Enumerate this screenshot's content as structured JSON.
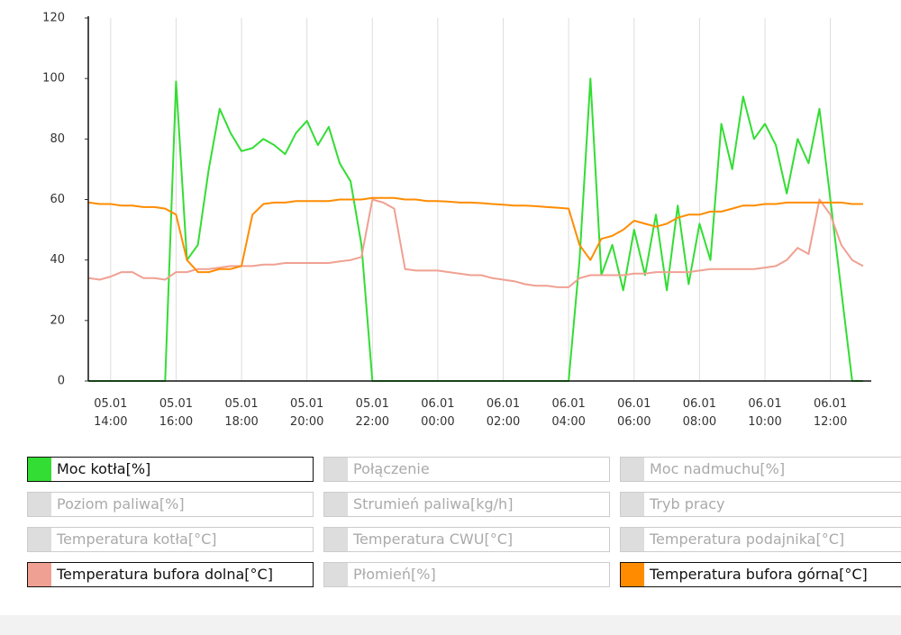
{
  "chart_data": {
    "type": "line",
    "x": [
      "05.01 13:20",
      "05.01 13:40",
      "05.01 14:00",
      "05.01 14:20",
      "05.01 14:40",
      "05.01 15:00",
      "05.01 15:20",
      "05.01 15:40",
      "05.01 16:00",
      "05.01 16:20",
      "05.01 16:40",
      "05.01 17:00",
      "05.01 17:20",
      "05.01 17:40",
      "05.01 18:00",
      "05.01 18:20",
      "05.01 18:40",
      "05.01 19:00",
      "05.01 19:20",
      "05.01 19:40",
      "05.01 20:00",
      "05.01 20:20",
      "05.01 20:40",
      "05.01 21:00",
      "05.01 21:20",
      "05.01 21:40",
      "05.01 22:00",
      "05.01 22:20",
      "05.01 22:40",
      "05.01 23:00",
      "05.01 23:20",
      "05.01 23:40",
      "06.01 00:00",
      "06.01 00:20",
      "06.01 00:40",
      "06.01 01:00",
      "06.01 01:20",
      "06.01 01:40",
      "06.01 02:00",
      "06.01 02:20",
      "06.01 02:40",
      "06.01 03:00",
      "06.01 03:20",
      "06.01 03:40",
      "06.01 04:00",
      "06.01 04:20",
      "06.01 04:40",
      "06.01 05:00",
      "06.01 05:20",
      "06.01 05:40",
      "06.01 06:00",
      "06.01 06:20",
      "06.01 06:40",
      "06.01 07:00",
      "06.01 07:20",
      "06.01 07:40",
      "06.01 08:00",
      "06.01 08:20",
      "06.01 08:40",
      "06.01 09:00",
      "06.01 09:20",
      "06.01 09:40",
      "06.01 10:00",
      "06.01 10:20",
      "06.01 10:40",
      "06.01 11:00",
      "06.01 11:20",
      "06.01 11:40",
      "06.01 12:00",
      "06.01 12:20",
      "06.01 12:40",
      "06.01 13:00"
    ],
    "xlim": [
      "05.01 13:19",
      "06.01 13:15"
    ],
    "xticks": [
      "05.01 14:00",
      "05.01 16:00",
      "05.01 18:00",
      "05.01 20:00",
      "05.01 22:00",
      "06.01 00:00",
      "06.01 02:00",
      "06.01 04:00",
      "06.01 06:00",
      "06.01 08:00",
      "06.01 10:00",
      "06.01 12:00"
    ],
    "ylim": [
      0,
      120
    ],
    "yticks": [
      0,
      20,
      40,
      60,
      80,
      100,
      120
    ],
    "grid": "x",
    "series": [
      {
        "name": "Moc kotła[%]",
        "visible": true,
        "color": "#33dd33",
        "values": [
          0,
          0,
          0,
          0,
          0,
          0,
          0,
          0,
          99,
          40,
          45,
          70,
          90,
          82,
          76,
          77,
          80,
          78,
          75,
          82,
          86,
          78,
          84,
          72,
          66,
          45,
          0,
          0,
          0,
          0,
          0,
          0,
          0,
          0,
          0,
          0,
          0,
          0,
          0,
          0,
          0,
          0,
          0,
          0,
          0,
          40,
          100,
          35,
          45,
          30,
          50,
          35,
          55,
          30,
          58,
          32,
          52,
          40,
          85,
          70,
          94,
          80,
          85,
          78,
          62,
          80,
          72,
          90,
          60,
          30,
          0,
          0
        ]
      },
      {
        "name": "Połączenie",
        "visible": false
      },
      {
        "name": "Moc nadmuchu[%]",
        "visible": false
      },
      {
        "name": "Poziom paliwa[%]",
        "visible": false
      },
      {
        "name": "Strumień paliwa[kg/h]",
        "visible": false
      },
      {
        "name": "Tryb pracy",
        "visible": false
      },
      {
        "name": "Temperatura kotła[°C]",
        "visible": false
      },
      {
        "name": "Temperatura CWU[°C]",
        "visible": false
      },
      {
        "name": "Temperatura podajnika[°C]",
        "visible": false
      },
      {
        "name": "Temperatura bufora dolna[°C]",
        "visible": true,
        "color": "#f0a092",
        "values": [
          34,
          33.5,
          34.5,
          36,
          36,
          34,
          34,
          33.5,
          36,
          36,
          37,
          37,
          37.5,
          38,
          38,
          38,
          38.5,
          38.5,
          39,
          39,
          39,
          39,
          39,
          39.5,
          40,
          41,
          60,
          59,
          57,
          37,
          36.5,
          36.5,
          36.5,
          36,
          35.5,
          35,
          35,
          34,
          33.5,
          33,
          32,
          31.5,
          31.5,
          31,
          31,
          34,
          35,
          35,
          35,
          35,
          35.5,
          35.5,
          36,
          36,
          36,
          36,
          36.5,
          37,
          37,
          37,
          37,
          37,
          37.5,
          38,
          40,
          44,
          42,
          60,
          55,
          45,
          40,
          38
        ]
      },
      {
        "name": "Płomień[%]",
        "visible": false
      },
      {
        "name": "Temperatura bufora górna[°C]",
        "visible": true,
        "color": "#ff8c00",
        "values": [
          59,
          58.5,
          58.5,
          58,
          58,
          57.5,
          57.5,
          57,
          55,
          40,
          36,
          36,
          37,
          37,
          38,
          55,
          58.5,
          59,
          59,
          59.5,
          59.5,
          59.5,
          59.5,
          60,
          60,
          60,
          60.5,
          60.5,
          60.5,
          60,
          60,
          59.5,
          59.5,
          59.3,
          59,
          59,
          58.8,
          58.5,
          58.3,
          58,
          58,
          57.8,
          57.5,
          57.3,
          57,
          45,
          40,
          47,
          48,
          50,
          53,
          52,
          51,
          52,
          54,
          55,
          55,
          56,
          56,
          57,
          58,
          58,
          58.5,
          58.5,
          59,
          59,
          59,
          59,
          59,
          59,
          58.5,
          58.5
        ]
      }
    ]
  }
}
